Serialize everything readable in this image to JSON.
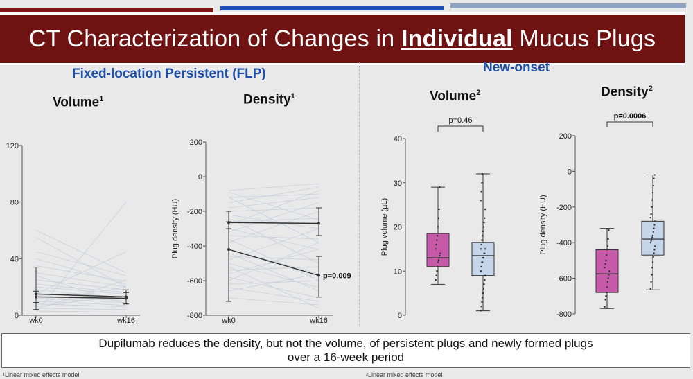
{
  "title": {
    "prefix": "CT Characterization of Changes in ",
    "emphasis": "Individual",
    "suffix": " Mucus Plugs"
  },
  "colors": {
    "banner": "#6e1212",
    "section_title": "#1d4fa6",
    "box_pink": "#c75aa8",
    "box_blue": "#c5d6ea",
    "topbar_red": "#7a1a1a",
    "topbar_blue": "#1f4fb0",
    "topbar_gray": "#8fa4c0"
  },
  "sections": {
    "flp": "Fixed-location Persistent (FLP)",
    "new_onset": "New-onset"
  },
  "panels": {
    "flp_volume": {
      "title": "Volume",
      "sup": "1"
    },
    "flp_density": {
      "title": "Density",
      "sup": "1"
    },
    "new_volume": {
      "title": "Volume",
      "sup": "2"
    },
    "new_density": {
      "title": "Density",
      "sup": "2"
    }
  },
  "chart_data": [
    {
      "type": "line",
      "panel": "FLP Volume",
      "x": [
        "wk0",
        "wk16"
      ],
      "ylabel": "",
      "ylim": [
        0,
        120
      ],
      "yticks": [
        0,
        40,
        80,
        120
      ],
      "series": [
        {
          "values": [
            15,
            13
          ],
          "error": [
            [
              4,
              34
            ],
            [
              8,
              18
            ]
          ]
        },
        {
          "values": [
            13,
            12
          ],
          "error": [
            [
              9,
              17
            ],
            [
              8,
              16
            ]
          ]
        }
      ],
      "individual_lines": [
        [
          3,
          2
        ],
        [
          5,
          4
        ],
        [
          8,
          6
        ],
        [
          10,
          7
        ],
        [
          12,
          9
        ],
        [
          14,
          10
        ],
        [
          18,
          12
        ],
        [
          20,
          15
        ],
        [
          22,
          16
        ],
        [
          25,
          18
        ],
        [
          30,
          20
        ],
        [
          35,
          24
        ],
        [
          40,
          22
        ],
        [
          55,
          20
        ],
        [
          45,
          28
        ],
        [
          6,
          14
        ],
        [
          9,
          20
        ],
        [
          4,
          25
        ],
        [
          60,
          30
        ],
        [
          28,
          8
        ],
        [
          15,
          45
        ],
        [
          2,
          80
        ]
      ]
    },
    {
      "type": "line",
      "panel": "FLP Density",
      "x": [
        "wk0",
        "wk16"
      ],
      "ylabel": "Plug density (HU)",
      "ylim": [
        -800,
        200
      ],
      "yticks": [
        -800,
        -600,
        -400,
        -200,
        0,
        200
      ],
      "series": [
        {
          "values": [
            -265,
            -270
          ],
          "error": [
            [
              -300,
              -200
            ],
            [
              -340,
              -180
            ]
          ]
        },
        {
          "values": [
            -420,
            -570
          ],
          "error": [
            [
              -720,
              -260
            ],
            [
              -695,
              -460
            ]
          ]
        }
      ],
      "annotation": "p=0.009",
      "individual_lines": [
        [
          -80,
          -40
        ],
        [
          -120,
          -100
        ],
        [
          -150,
          -60
        ],
        [
          -200,
          -180
        ],
        [
          -220,
          -300
        ],
        [
          -260,
          -240
        ],
        [
          -300,
          -420
        ],
        [
          -340,
          -360
        ],
        [
          -380,
          -200
        ],
        [
          -420,
          -560
        ],
        [
          -460,
          -480
        ],
        [
          -500,
          -640
        ],
        [
          -540,
          -520
        ],
        [
          -580,
          -700
        ],
        [
          -620,
          -600
        ],
        [
          -660,
          -560
        ],
        [
          -700,
          -740
        ],
        [
          -90,
          -250
        ],
        [
          -180,
          -120
        ],
        [
          -320,
          -150
        ],
        [
          -480,
          -300
        ],
        [
          -560,
          -420
        ],
        [
          -640,
          -720
        ],
        [
          -240,
          -500
        ],
        [
          -360,
          -600
        ],
        [
          -120,
          -380
        ],
        [
          -440,
          -660
        ],
        [
          -600,
          -380
        ],
        [
          -280,
          -80
        ],
        [
          -520,
          -760
        ]
      ]
    },
    {
      "type": "box",
      "panel": "New-onset Volume",
      "ylabel": "Plug volume (µL)",
      "ylim": [
        0,
        40
      ],
      "yticks": [
        0,
        10,
        20,
        30,
        40
      ],
      "annotation": "p=0.46",
      "boxes": [
        {
          "color": "pink",
          "min": 7,
          "q1": 11,
          "median": 13,
          "q3": 18.5,
          "max": 29,
          "points": [
            8,
            9,
            10,
            11,
            12,
            12.5,
            13,
            13.5,
            14,
            15,
            16,
            17,
            18,
            20,
            22,
            24,
            29
          ]
        },
        {
          "color": "blue",
          "min": 1,
          "q1": 9,
          "median": 13.5,
          "q3": 16.5,
          "max": 32,
          "points": [
            1,
            2,
            3,
            4,
            5,
            6,
            7,
            8,
            9,
            10,
            11,
            12,
            12,
            13,
            13,
            14,
            14,
            15,
            15,
            16,
            17,
            18,
            19,
            20,
            21,
            22,
            24,
            26,
            28,
            30,
            32
          ]
        }
      ]
    },
    {
      "type": "box",
      "panel": "New-onset Density",
      "ylabel": "Plug density (HU)",
      "ylim": [
        -800,
        200
      ],
      "yticks": [
        -800,
        -600,
        -400,
        -200,
        0,
        200
      ],
      "annotation": "p=0.0006",
      "boxes": [
        {
          "color": "pink",
          "min": -770,
          "q1": -680,
          "median": -575,
          "q3": -440,
          "max": -320,
          "points": [
            -760,
            -720,
            -700,
            -680,
            -650,
            -620,
            -600,
            -580,
            -560,
            -540,
            -520,
            -500,
            -470,
            -440,
            -420,
            -380,
            -330
          ]
        },
        {
          "color": "blue",
          "min": -665,
          "q1": -470,
          "median": -380,
          "q3": -280,
          "max": -20,
          "points": [
            -660,
            -620,
            -580,
            -540,
            -510,
            -480,
            -460,
            -440,
            -420,
            -400,
            -390,
            -380,
            -370,
            -360,
            -340,
            -320,
            -300,
            -280,
            -260,
            -240,
            -200,
            -160,
            -120,
            -80,
            -40,
            -20
          ]
        }
      ]
    }
  ],
  "conclusion": {
    "line1": "Dupilumab reduces the density, but not the volume, of persistent plugs and newly formed plugs",
    "line2": "over a 16-week period"
  },
  "footnotes": {
    "left": "¹Linear mixed effects model",
    "right": "²Linear mixed effects model"
  }
}
